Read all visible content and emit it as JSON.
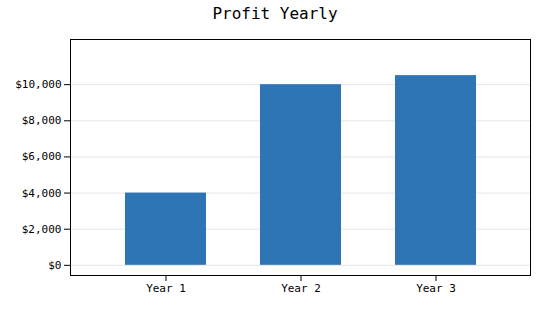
{
  "chart_data": {
    "type": "bar",
    "title": "Profit Yearly",
    "categories": [
      "Year 1",
      "Year 2",
      "Year 3"
    ],
    "values": [
      4000,
      10000,
      10500
    ],
    "color": "#2E75B6",
    "ylim": [
      -562.5,
      12500
    ],
    "yticks": [
      {
        "value": 0,
        "label": "$0"
      },
      {
        "value": 2000,
        "label": "$2,000"
      },
      {
        "value": 4000,
        "label": "$4,000"
      },
      {
        "value": 6000,
        "label": "$6,000"
      },
      {
        "value": 8000,
        "label": "$8,000"
      },
      {
        "value": 10000,
        "label": "$10,000"
      }
    ],
    "grid": true
  }
}
